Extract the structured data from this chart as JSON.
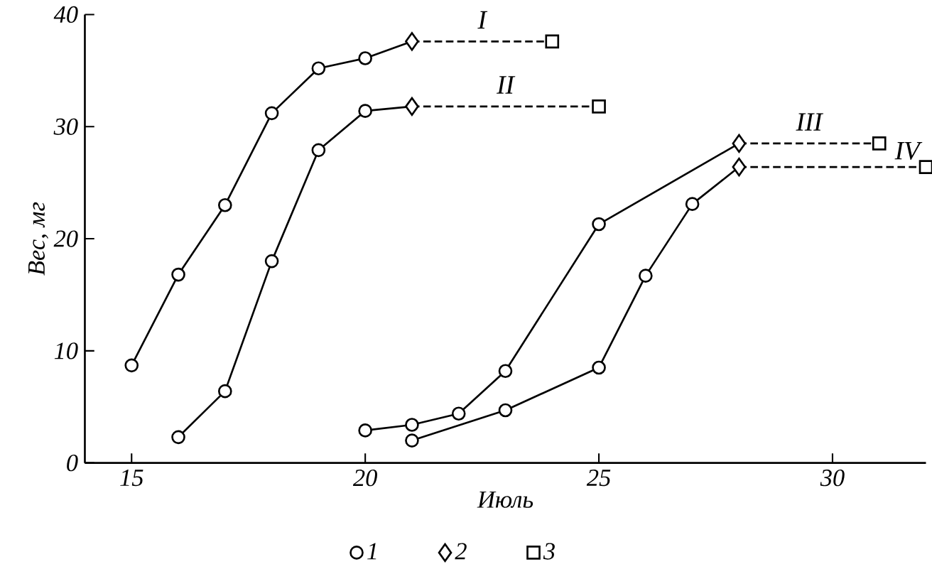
{
  "chart_data": {
    "type": "line",
    "xlabel": "Июль",
    "ylabel": "Вес, мг",
    "xlim": [
      14,
      32
    ],
    "ylim": [
      0,
      40
    ],
    "xticks": [
      15,
      20,
      25,
      30
    ],
    "yticks": [
      0,
      10,
      20,
      30,
      40
    ],
    "grid": false,
    "legend": "bottom",
    "series": [
      {
        "color": "#000000",
        "line_style": "solid",
        "x": [
          15,
          16,
          17,
          18,
          19,
          20,
          21
        ],
        "values": [
          8.7,
          16.8,
          23.0,
          31.2,
          35.2,
          36.1,
          37.6
        ]
      },
      {
        "name": "I",
        "color": "#000000",
        "line_style": "dashed",
        "x": [
          21,
          24
        ],
        "values": [
          37.6,
          37.6
        ]
      },
      {
        "color": "#000000",
        "line_style": "solid",
        "x": [
          16,
          17,
          18,
          19,
          20,
          21
        ],
        "values": [
          2.3,
          6.4,
          18.0,
          27.9,
          31.4,
          31.8
        ]
      },
      {
        "name": "II",
        "color": "#000000",
        "line_style": "dashed",
        "x": [
          21,
          25
        ],
        "values": [
          31.8,
          31.8
        ]
      },
      {
        "color": "#000000",
        "line_style": "solid",
        "x": [
          20,
          21,
          22,
          23,
          25,
          28
        ],
        "values": [
          2.9,
          3.4,
          4.4,
          8.2,
          21.3,
          28.5
        ]
      },
      {
        "name": "III",
        "color": "#000000",
        "line_style": "dashed",
        "x": [
          28,
          31
        ],
        "values": [
          28.5,
          28.5
        ]
      },
      {
        "color": "#000000",
        "line_style": "solid",
        "x": [
          21,
          23,
          25,
          26,
          27,
          28
        ],
        "values": [
          2.0,
          4.7,
          8.5,
          16.7,
          23.1,
          26.4
        ]
      },
      {
        "name": "IV",
        "color": "#000000",
        "line_style": "dashed",
        "x": [
          28,
          32
        ],
        "values": [
          26.4,
          26.4
        ]
      },
      {
        "type": "scatter",
        "name": "1",
        "color": "#000000",
        "marker": "circle",
        "x": [
          15,
          16,
          17,
          18,
          19,
          20,
          16,
          17,
          18,
          19,
          20,
          20,
          21,
          22,
          23,
          25,
          21,
          23,
          25,
          26,
          27
        ],
        "values": [
          8.7,
          16.8,
          23.0,
          31.2,
          35.2,
          36.1,
          2.3,
          6.4,
          18.0,
          27.9,
          31.4,
          2.9,
          3.4,
          4.4,
          8.2,
          21.3,
          2.0,
          4.7,
          8.5,
          16.7,
          23.1
        ]
      },
      {
        "type": "scatter",
        "name": "2",
        "color": "#000000",
        "marker": "diamond",
        "x": [
          21,
          21,
          28,
          28
        ],
        "values": [
          37.6,
          31.8,
          28.5,
          26.4
        ]
      },
      {
        "type": "scatter",
        "name": "3",
        "color": "#000000",
        "marker": "square",
        "x": [
          24,
          25,
          31,
          32
        ],
        "values": [
          37.6,
          31.8,
          28.5,
          26.4
        ]
      }
    ]
  }
}
